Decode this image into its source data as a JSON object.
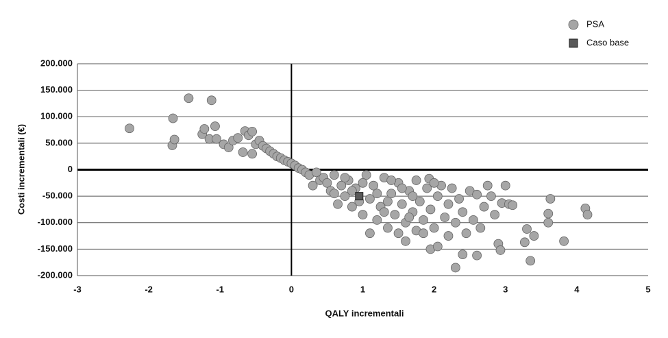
{
  "chart_data": {
    "type": "scatter",
    "x_label": "QALY incrementali",
    "y_label": "Costi incrementali (€)",
    "xlim": [
      -3,
      5
    ],
    "xticks": [
      -3,
      -2,
      -1,
      0,
      1,
      2,
      3,
      4,
      5
    ],
    "ylim": [
      -200000,
      200000
    ],
    "yticks": [
      {
        "value": -200000,
        "label": "-200.000"
      },
      {
        "value": -150000,
        "label": "-150.000"
      },
      {
        "value": -100000,
        "label": "-100.000"
      },
      {
        "value": -50000,
        "label": "-50.000"
      },
      0,
      {
        "value": 50000,
        "label": "50.000"
      },
      {
        "value": 100000,
        "label": "100.000"
      },
      {
        "value": 150000,
        "label": "150.000"
      },
      {
        "value": 200000,
        "label": "200.000"
      }
    ],
    "grid": true,
    "legend": "top-right",
    "series": [
      {
        "name": "PSA",
        "color": "#a6a6a6",
        "marker": "circle",
        "x": [
          -2.27,
          -1.66,
          -1.67,
          -1.64,
          -1.44,
          -1.12,
          -1.07,
          -1.25,
          -1.22,
          -1.15,
          -1.05,
          -0.95,
          -0.88,
          -0.82,
          -0.75,
          -0.68,
          -0.65,
          -0.6,
          -0.55,
          -0.55,
          -0.5,
          -0.45,
          -0.4,
          -0.35,
          -0.3,
          -0.25,
          -0.2,
          -0.15,
          -0.1,
          -0.05,
          0,
          0.05,
          0.1,
          0.15,
          0.2,
          0.25,
          0.3,
          0.35,
          0.4,
          0.45,
          0.5,
          0.55,
          0.6,
          0.65,
          0.7,
          0.75,
          0.8,
          0.85,
          0.9,
          1.0,
          1.05,
          1.1,
          1.1,
          1.15,
          1.2,
          1.25,
          1.3,
          1.35,
          1.4,
          1.45,
          1.5,
          1.5,
          1.55,
          1.6,
          1.6,
          1.65,
          1.7,
          1.75,
          1.75,
          1.8,
          1.85,
          1.9,
          1.93,
          1.95,
          1.95,
          2.0,
          2.05,
          2.05,
          2.1,
          2.15,
          2.2,
          2.2,
          2.25,
          2.3,
          2.3,
          2.35,
          2.4,
          2.4,
          2.45,
          2.5,
          2.55,
          2.6,
          2.6,
          2.65,
          2.7,
          2.75,
          2.8,
          2.85,
          2.9,
          2.93,
          2.95,
          3.0,
          3.05,
          3.1,
          3.27,
          3.3,
          3.35,
          3.4,
          3.6,
          3.6,
          3.63,
          3.82,
          4.12,
          4.15,
          0.75,
          0.95,
          1.0,
          1.2,
          1.3,
          1.4,
          1.7,
          0.6,
          0.85,
          1.55,
          1.85,
          2.0,
          1.35,
          1.65
        ],
        "values": [
          78000,
          97000,
          46000,
          57000,
          135000,
          131000,
          82000,
          67000,
          77000,
          58000,
          58000,
          48000,
          42000,
          55000,
          60000,
          33000,
          73000,
          65000,
          72000,
          30000,
          48000,
          55000,
          45000,
          40000,
          35000,
          30000,
          25000,
          22000,
          18000,
          15000,
          12000,
          8000,
          3000,
          0,
          -5000,
          -10000,
          -30000,
          -5000,
          -20000,
          -15000,
          -25000,
          -40000,
          -10000,
          -65000,
          -30000,
          -50000,
          -20000,
          -70000,
          -35000,
          -85000,
          -10000,
          -120000,
          -55000,
          -30000,
          -95000,
          -70000,
          -15000,
          -110000,
          -45000,
          -85000,
          -25000,
          -120000,
          -65000,
          -100000,
          -135000,
          -40000,
          -80000,
          -20000,
          -115000,
          -60000,
          -95000,
          -35000,
          -17000,
          -150000,
          -75000,
          -110000,
          -145000,
          -50000,
          -30000,
          -90000,
          -125000,
          -65000,
          -35000,
          -185000,
          -100000,
          -55000,
          -160000,
          -80000,
          -120000,
          -40000,
          -95000,
          -162000,
          -47000,
          -110000,
          -70000,
          -30000,
          -50000,
          -85000,
          -140000,
          -152000,
          -63000,
          -30000,
          -65000,
          -67000,
          -137000,
          -112000,
          -172000,
          -125000,
          -100000,
          -83000,
          -55000,
          -135000,
          -73000,
          -85000,
          -15000,
          -60000,
          -25000,
          -45000,
          -80000,
          -20000,
          -50000,
          -45000,
          -40000,
          -35000,
          -120000,
          -25000,
          -60000,
          -90000
        ]
      },
      {
        "name": "Caso base",
        "color": "#595959",
        "marker": "square",
        "x": [
          0.95
        ],
        "values": [
          -50000
        ]
      }
    ]
  }
}
